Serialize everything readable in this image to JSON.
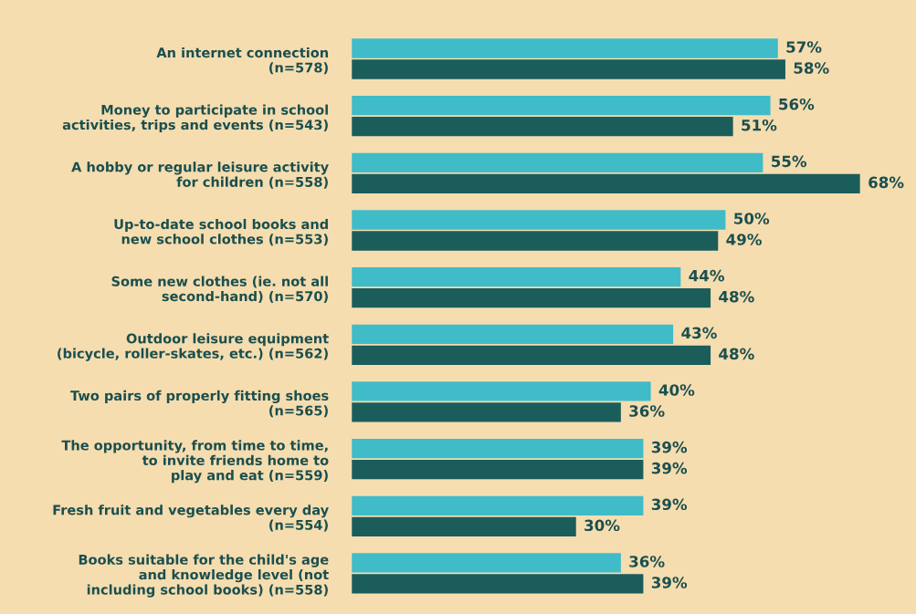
{
  "chart_data": {
    "type": "bar",
    "orientation": "horizontal",
    "categories": [
      "An internet connection\n(n=578)",
      "Money to participate in school\nactivities, trips and events (n=543)",
      "A hobby or regular leisure activity\nfor children (n=558)",
      "Up-to-date school books and\nnew school clothes (n=553)",
      "Some new clothes (ie. not all\nsecond-hand) (n=570)",
      "Outdoor leisure equipment\n(bicycle, roller-skates, etc.) (n=562)",
      "Two pairs of properly fitting shoes\n(n=565)",
      "The opportunity, from time to time,\nto invite friends home to\nplay and eat (n=559)",
      "Fresh fruit and vegetables every day\n(n=554)",
      "Books suitable for the child's age\nand knowledge level (not\nincluding school books) (n=558)"
    ],
    "series": [
      {
        "color": "#3fbcc8",
        "values": [
          57,
          56,
          55,
          50,
          44,
          43,
          40,
          39,
          39,
          36
        ],
        "value_labels": [
          "57%",
          "56%",
          "55%",
          "50%",
          "44%",
          "43%",
          "40%",
          "39%",
          "39%",
          "36%"
        ]
      },
      {
        "color": "#1b5d5b",
        "values": [
          58,
          51,
          68,
          49,
          48,
          48,
          36,
          39,
          30,
          39
        ],
        "value_labels": [
          "58%",
          "51%",
          "68%",
          "49%",
          "48%",
          "48%",
          "36%",
          "39%",
          "30%",
          "39%"
        ]
      }
    ],
    "tick_labels": false,
    "grid": false,
    "legend": false
  }
}
